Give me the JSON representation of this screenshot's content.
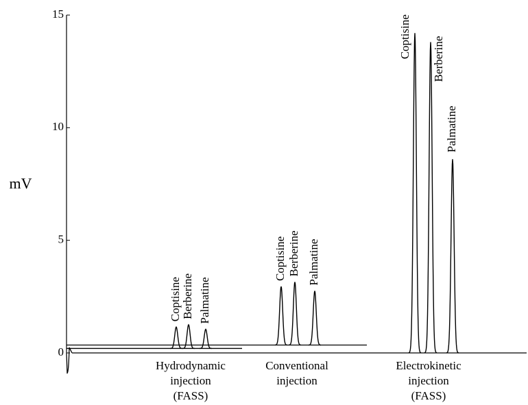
{
  "chart_data": {
    "type": "chromatogram",
    "y_label": "mV",
    "ylim": [
      0,
      15
    ],
    "yticks": [
      0,
      5,
      10,
      15
    ],
    "series": [
      {
        "name": [
          "Hydrodynamic",
          "injection",
          "(FASS)"
        ],
        "baseline": 0.2,
        "peaks": [
          "Coptisine",
          "Berberine",
          "Palmatine"
        ],
        "values": [
          0.95,
          1.05,
          0.85
        ]
      },
      {
        "name": [
          "Conventional",
          "injection"
        ],
        "baseline": 0.35,
        "peaks": [
          "Coptisine",
          "Berberine",
          "Palmatine"
        ],
        "values": [
          2.6,
          2.8,
          2.4
        ]
      },
      {
        "name": [
          "Electrokinetic",
          "injection",
          "(FASS)"
        ],
        "baseline": 0,
        "dip": -0.9,
        "peaks": [
          "Coptisine",
          "Berberine",
          "Palmatine"
        ],
        "values": [
          14.2,
          13.8,
          8.6
        ]
      }
    ]
  }
}
